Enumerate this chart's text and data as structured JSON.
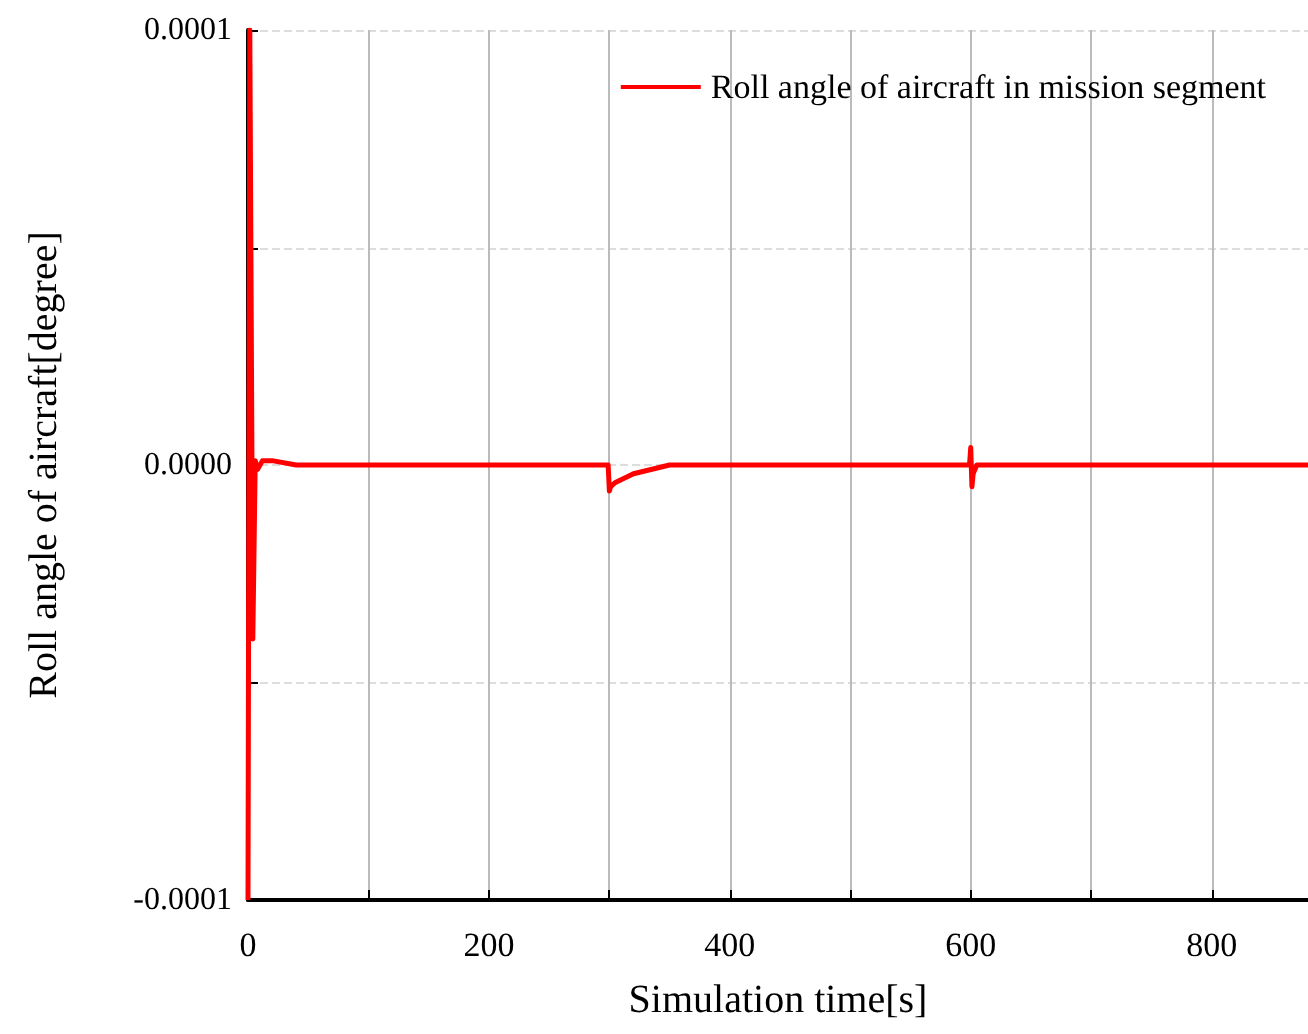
{
  "chart_data": {
    "type": "line",
    "xlabel": "Simulation time[s]",
    "ylabel": "Roll angle of aircraft[degree]",
    "x": [
      0,
      1.5,
      4,
      6,
      8,
      12,
      20,
      40,
      80,
      150,
      299,
      300,
      301,
      305,
      320,
      350,
      400,
      500,
      599,
      600,
      601,
      602,
      605,
      700,
      880
    ],
    "series": [
      {
        "name": "Roll angle of aircraft in mission segment",
        "color": "#ff0000",
        "values": [
          -0.0001,
          0.0001,
          -4e-05,
          1e-06,
          -1e-06,
          1e-06,
          1e-06,
          0,
          0,
          0,
          0,
          -6e-06,
          -5e-06,
          -4e-06,
          -2e-06,
          0,
          0,
          0,
          0,
          4e-06,
          -5e-06,
          -2e-06,
          0,
          0,
          0
        ]
      }
    ],
    "xlim": [
      0,
      880
    ],
    "xticks": [
      0,
      {
        "value": 100,
        "label": null
      },
      200,
      {
        "value": 300,
        "label": null
      },
      400,
      {
        "value": 500,
        "label": null
      },
      600,
      {
        "value": 700,
        "label": null
      },
      800
    ],
    "ylim": [
      -0.0001,
      0.0001
    ],
    "yticks": [
      {
        "value": -0.0001,
        "label": "-0.0001"
      },
      {
        "value": -5e-05,
        "label": null
      },
      {
        "value": 0,
        "label": "0.0000"
      },
      {
        "value": 5e-05,
        "label": null
      },
      {
        "value": 0.0001,
        "label": "0.0001"
      }
    ],
    "grid": true,
    "legend": "top right",
    "marker": "none",
    "line_style": "solid"
  }
}
